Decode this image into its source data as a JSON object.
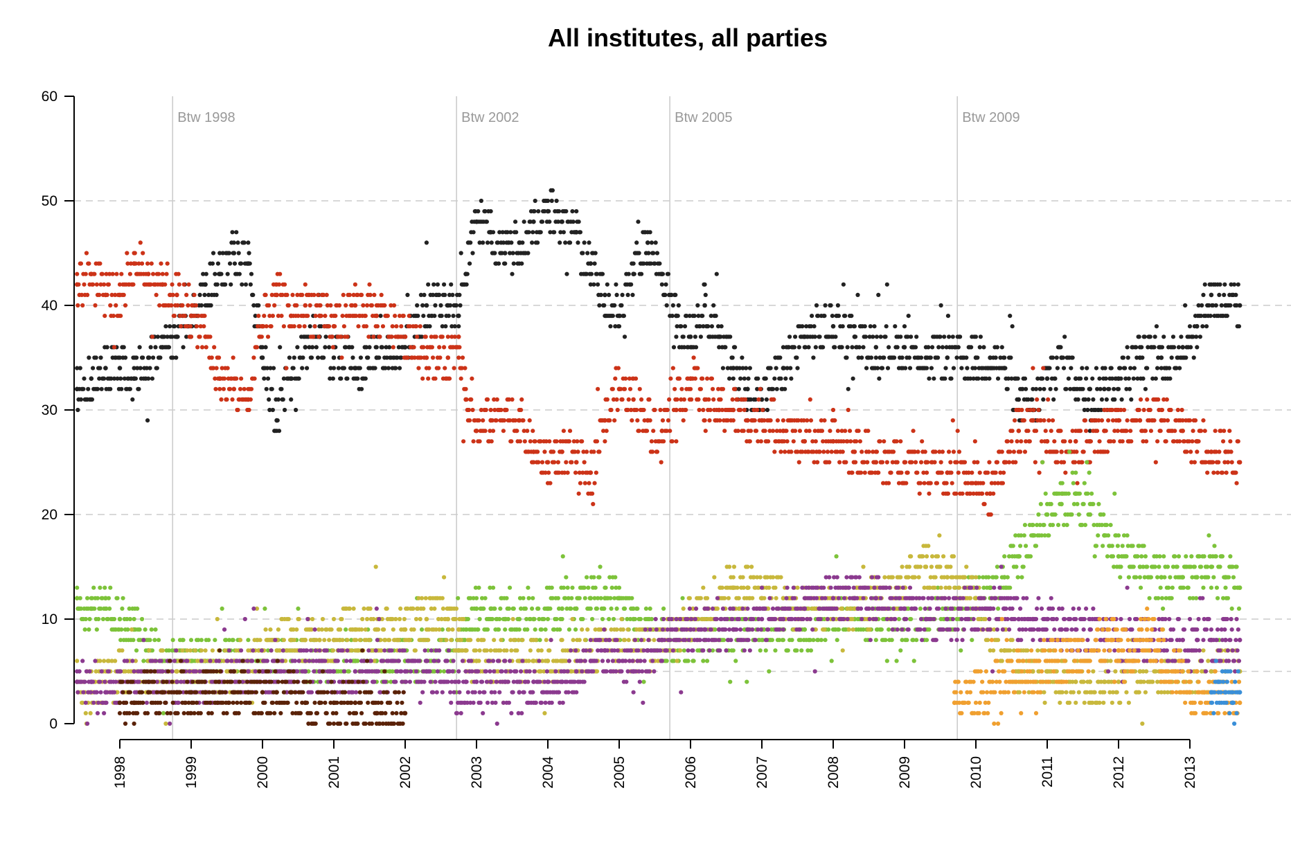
{
  "chart_data": {
    "type": "scatter",
    "title": "All institutes, all parties",
    "xlabel": "",
    "ylabel": "",
    "xlim": [
      1997.35,
      2013.75
    ],
    "ylim": [
      0,
      60
    ],
    "y_ticks": [
      0,
      10,
      20,
      30,
      40,
      50,
      60
    ],
    "y_gridlines": [
      5,
      10,
      20,
      30,
      40,
      50
    ],
    "x_ticks": [
      1998,
      1999,
      2000,
      2001,
      2002,
      2003,
      2004,
      2005,
      2006,
      2007,
      2008,
      2009,
      2010,
      2011,
      2012,
      2013
    ],
    "x_tick_labels": [
      "1998",
      "1999",
      "2000",
      "2001",
      "2002",
      "2003",
      "2004",
      "2005",
      "2006",
      "2007",
      "2008",
      "2009",
      "2010",
      "2011",
      "2012",
      "2013"
    ],
    "elections": [
      {
        "label": "Btw 1998",
        "x": 1998.74
      },
      {
        "label": "Btw 2002",
        "x": 2002.72
      },
      {
        "label": "Btw 2005",
        "x": 2005.71
      },
      {
        "label": "Btw 2009",
        "x": 2009.74
      }
    ],
    "series": [
      {
        "name": "black",
        "color": "#222222",
        "x": [
          1997.4,
          1997.6,
          1997.8,
          1998.0,
          1998.2,
          1998.4,
          1998.6,
          1998.8,
          1999.0,
          1999.2,
          1999.4,
          1999.6,
          1999.8,
          2000.0,
          2000.2,
          2000.4,
          2000.6,
          2000.8,
          2001.0,
          2001.3,
          2001.6,
          2002.0,
          2002.3,
          2002.6,
          2002.75,
          2002.85,
          2003.0,
          2003.2,
          2003.4,
          2003.6,
          2003.8,
          2004.0,
          2004.2,
          2004.4,
          2004.6,
          2004.8,
          2005.0,
          2005.2,
          2005.4,
          2005.6,
          2005.8,
          2006.0,
          2006.2,
          2006.4,
          2006.6,
          2006.8,
          2007.0,
          2007.3,
          2007.6,
          2008.0,
          2008.3,
          2008.6,
          2009.0,
          2009.3,
          2009.6,
          2010.0,
          2010.2,
          2010.4,
          2010.6,
          2010.8,
          2011.0,
          2011.2,
          2011.4,
          2011.6,
          2011.8,
          2012.0,
          2012.3,
          2012.6,
          2012.9,
          2013.1,
          2013.3,
          2013.5,
          2013.7
        ],
        "values": [
          32,
          33,
          34,
          34,
          33,
          35,
          36,
          37,
          39,
          42,
          43,
          45,
          44,
          35,
          29,
          33,
          36,
          37,
          35,
          34,
          35,
          36,
          40,
          40,
          39,
          43,
          48,
          47,
          45,
          46,
          48,
          49,
          48,
          47,
          44,
          41,
          39,
          43,
          46,
          43,
          39,
          37,
          40,
          37,
          34,
          32,
          31,
          34,
          37,
          38,
          37,
          36,
          36,
          35,
          35,
          35,
          35,
          34,
          31,
          30,
          33,
          35,
          33,
          32,
          32,
          33,
          35,
          35,
          36,
          38,
          41,
          40,
          40
        ]
      },
      {
        "name": "red",
        "color": "#cc3318",
        "x": [
          1997.4,
          1997.6,
          1997.8,
          1998.0,
          1998.2,
          1998.4,
          1998.6,
          1998.8,
          1999.0,
          1999.2,
          1999.4,
          1999.6,
          1999.8,
          2000.0,
          2000.2,
          2000.4,
          2000.6,
          2000.8,
          2001.0,
          2001.3,
          2001.6,
          2002.0,
          2002.3,
          2002.6,
          2002.75,
          2002.85,
          2003.0,
          2003.2,
          2003.4,
          2003.6,
          2003.8,
          2004.0,
          2004.2,
          2004.4,
          2004.6,
          2004.8,
          2005.0,
          2005.2,
          2005.4,
          2005.6,
          2005.8,
          2006.0,
          2006.2,
          2006.4,
          2006.6,
          2006.8,
          2007.0,
          2007.3,
          2007.6,
          2008.0,
          2008.3,
          2008.6,
          2009.0,
          2009.3,
          2009.6,
          2010.0,
          2010.2,
          2010.4,
          2010.6,
          2010.8,
          2011.0,
          2011.2,
          2011.4,
          2011.6,
          2011.8,
          2012.0,
          2012.3,
          2012.6,
          2012.9,
          2013.1,
          2013.3,
          2013.5,
          2013.7
        ],
        "values": [
          42,
          43,
          41,
          41,
          44,
          43,
          42,
          41,
          39,
          37,
          33,
          32,
          31,
          38,
          41,
          39,
          40,
          39,
          38,
          40,
          39,
          37,
          35,
          35,
          37,
          31,
          28,
          29,
          30,
          29,
          26,
          25,
          26,
          25,
          24,
          29,
          32,
          31,
          29,
          28,
          30,
          33,
          31,
          30,
          30,
          29,
          29,
          28,
          27,
          27,
          26,
          25,
          25,
          25,
          24,
          23,
          22,
          25,
          28,
          29,
          27,
          26,
          27,
          27,
          28,
          29,
          29,
          29,
          28,
          27,
          26,
          26,
          25
        ]
      },
      {
        "name": "green",
        "color": "#7dc33a",
        "x": [
          1997.4,
          1997.6,
          1997.8,
          1998.0,
          1998.2,
          1998.4,
          1998.6,
          1998.8,
          1999.0,
          1999.2,
          1999.4,
          1999.6,
          1999.8,
          2000.0,
          2000.2,
          2000.4,
          2000.6,
          2000.8,
          2001.0,
          2001.3,
          2001.6,
          2002.0,
          2002.3,
          2002.6,
          2002.75,
          2002.85,
          2003.0,
          2003.2,
          2003.4,
          2003.6,
          2003.8,
          2004.0,
          2004.2,
          2004.4,
          2004.6,
          2004.8,
          2005.0,
          2005.2,
          2005.4,
          2005.6,
          2005.8,
          2006.0,
          2006.2,
          2006.4,
          2006.6,
          2006.8,
          2007.0,
          2007.3,
          2007.6,
          2008.0,
          2008.3,
          2008.6,
          2009.0,
          2009.3,
          2009.6,
          2010.0,
          2010.2,
          2010.4,
          2010.6,
          2010.8,
          2011.0,
          2011.2,
          2011.4,
          2011.6,
          2011.8,
          2012.0,
          2012.3,
          2012.6,
          2012.9,
          2013.1,
          2013.3,
          2013.5,
          2013.7
        ],
        "values": [
          12,
          11,
          12,
          10,
          9,
          7,
          6,
          6,
          6,
          6,
          6,
          6,
          6,
          6,
          6,
          6,
          6,
          6,
          6,
          6,
          6,
          6,
          6,
          7,
          7,
          10,
          11,
          11,
          10,
          10,
          10,
          11,
          11,
          11,
          12,
          12,
          12,
          10,
          9,
          8,
          8,
          8,
          8,
          9,
          9,
          9,
          9,
          9,
          9,
          10,
          10,
          10,
          10,
          10,
          11,
          12,
          13,
          14,
          16,
          18,
          20,
          21,
          22,
          20,
          18,
          16,
          15,
          14,
          14,
          14,
          15,
          14,
          13
        ]
      },
      {
        "name": "yellow",
        "color": "#c8b83c",
        "x": [
          1997.4,
          1997.6,
          1997.8,
          1998.0,
          1998.2,
          1998.4,
          1998.6,
          1998.8,
          1999.0,
          1999.2,
          1999.4,
          1999.6,
          1999.8,
          2000.0,
          2000.2,
          2000.4,
          2000.6,
          2000.8,
          2001.0,
          2001.3,
          2001.6,
          2002.0,
          2002.3,
          2002.6,
          2002.75,
          2002.85,
          2003.0,
          2003.2,
          2003.4,
          2003.6,
          2003.8,
          2004.0,
          2004.2,
          2004.4,
          2004.6,
          2004.8,
          2005.0,
          2005.2,
          2005.4,
          2005.6,
          2005.8,
          2006.0,
          2006.2,
          2006.4,
          2006.6,
          2006.8,
          2007.0,
          2007.3,
          2007.6,
          2008.0,
          2008.3,
          2008.6,
          2009.0,
          2009.3,
          2009.6,
          2010.0,
          2010.2,
          2010.4,
          2010.6,
          2010.8,
          2011.0,
          2011.2,
          2011.4,
          2011.6,
          2011.8,
          2012.0,
          2012.3,
          2012.6,
          2012.9,
          2013.1,
          2013.3,
          2013.5,
          2013.7
        ],
        "values": [
          4,
          3,
          4,
          5,
          5,
          5,
          5,
          5,
          5,
          5,
          5,
          5,
          6,
          7,
          8,
          8,
          8,
          8,
          8,
          9,
          9,
          9,
          10,
          10,
          9,
          7,
          6,
          6,
          6,
          6,
          6,
          6,
          6,
          7,
          7,
          7,
          7,
          7,
          7,
          8,
          9,
          10,
          11,
          12,
          13,
          13,
          12,
          12,
          11,
          11,
          11,
          12,
          13,
          15,
          14,
          12,
          9,
          7,
          5,
          5,
          5,
          4,
          4,
          4,
          4,
          4,
          5,
          5,
          5,
          5,
          5,
          5,
          5
        ]
      },
      {
        "name": "purple",
        "color": "#8b3a8f",
        "x": [
          1997.4,
          1997.6,
          1997.8,
          1998.0,
          1998.2,
          1998.4,
          1998.6,
          1998.8,
          1999.0,
          1999.2,
          1999.4,
          1999.6,
          1999.8,
          2000.0,
          2000.2,
          2000.4,
          2000.6,
          2000.8,
          2001.0,
          2001.3,
          2001.6,
          2002.0,
          2002.3,
          2002.6,
          2002.75,
          2002.85,
          2003.0,
          2003.2,
          2003.4,
          2003.6,
          2003.8,
          2004.0,
          2004.2,
          2004.4,
          2004.6,
          2004.8,
          2005.0,
          2005.2,
          2005.4,
          2005.6,
          2005.8,
          2006.0,
          2006.2,
          2006.4,
          2006.6,
          2006.8,
          2007.0,
          2007.3,
          2007.6,
          2008.0,
          2008.3,
          2008.6,
          2009.0,
          2009.3,
          2009.6,
          2010.0,
          2010.2,
          2010.4,
          2010.6,
          2010.8,
          2011.0,
          2011.2,
          2011.4,
          2011.6,
          2011.8,
          2012.0,
          2012.3,
          2012.6,
          2012.9,
          2013.1,
          2013.3,
          2013.5,
          2013.7
        ],
        "values": [
          4,
          4,
          3,
          4,
          4,
          4,
          4,
          4,
          4,
          4,
          4,
          5,
          5,
          5,
          5,
          5,
          5,
          5,
          5,
          5,
          5,
          5,
          5,
          5,
          4,
          4,
          4,
          4,
          4,
          3,
          4,
          4,
          4,
          5,
          6,
          7,
          6,
          5,
          7,
          8,
          9,
          9,
          9,
          9,
          9,
          9,
          10,
          10,
          11,
          12,
          12,
          12,
          11,
          10,
          10,
          11,
          11,
          11,
          10,
          10,
          10,
          9,
          9,
          9,
          8,
          8,
          8,
          8,
          8,
          8,
          8,
          8,
          8
        ]
      },
      {
        "name": "brown",
        "color": "#5a2208",
        "x": [
          1998.0,
          1998.2,
          1998.4,
          1998.6,
          1998.8,
          1999.0,
          1999.2,
          1999.4,
          1999.6,
          1999.8,
          2000.0,
          2000.2,
          2000.4,
          2000.6,
          2000.8,
          2001.0,
          2001.3,
          2001.6,
          2002.0
        ],
        "values": [
          2,
          2,
          3,
          3,
          3,
          3,
          3,
          3,
          3,
          3,
          3,
          3,
          3,
          2,
          2,
          2,
          2,
          1,
          1
        ]
      },
      {
        "name": "orange",
        "color": "#f0a030",
        "x": [
          2009.7,
          2011.9,
          2012.0,
          2012.2,
          2012.4,
          2012.6,
          2012.8,
          2013.0,
          2013.2,
          2013.4,
          2013.6,
          2013.7
        ],
        "values": [
          2,
          8,
          7,
          6,
          9,
          6,
          5,
          3,
          3,
          3,
          3,
          2
        ]
      },
      {
        "name": "blue",
        "color": "#3a8fd8",
        "x": [
          2013.3,
          2013.4,
          2013.5,
          2013.6,
          2013.7
        ],
        "values": [
          3,
          4,
          3,
          2,
          3
        ]
      }
    ]
  }
}
